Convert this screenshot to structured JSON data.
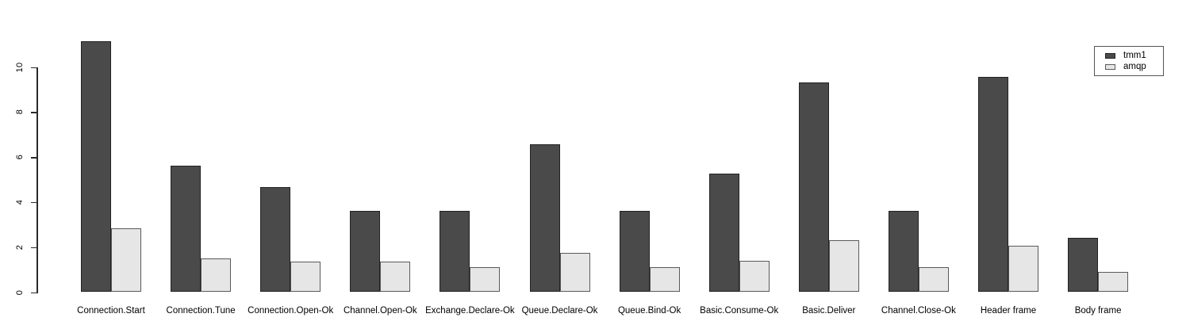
{
  "chart_data": {
    "type": "bar",
    "title": "",
    "xlabel": "",
    "ylabel": "",
    "categories": [
      "Connection.Start",
      "Connection.Tune",
      "Connection.Open-Ok",
      "Channel.Open-Ok",
      "Exchange.Declare-Ok",
      "Queue.Declare-Ok",
      "Queue.Bind-Ok",
      "Basic.Consume-Ok",
      "Basic.Deliver",
      "Channel.Close-Ok",
      "Header frame",
      "Body frame"
    ],
    "series": [
      {
        "name": "tmm1",
        "fill_color": "#4a4a4a",
        "border_color": "#222222",
        "values": [
          11.15,
          5.6,
          4.65,
          3.6,
          3.6,
          6.55,
          3.6,
          5.25,
          9.3,
          3.6,
          9.55,
          2.4
        ]
      },
      {
        "name": "amqp",
        "fill_color": "#e6e6e6",
        "border_color": "#5a5a5a",
        "values": [
          2.85,
          1.5,
          1.35,
          1.35,
          1.1,
          1.75,
          1.1,
          1.4,
          2.3,
          1.1,
          2.05,
          0.9
        ]
      }
    ],
    "ylim": [
      0,
      10
    ],
    "yticks": [
      0,
      2,
      4,
      6,
      8,
      10
    ],
    "grid": false,
    "legend_position": "top-right",
    "legend_entries": [
      "tmm1",
      "amqp"
    ],
    "axis_color": "#2a2a2a",
    "text_color": "#000000"
  }
}
